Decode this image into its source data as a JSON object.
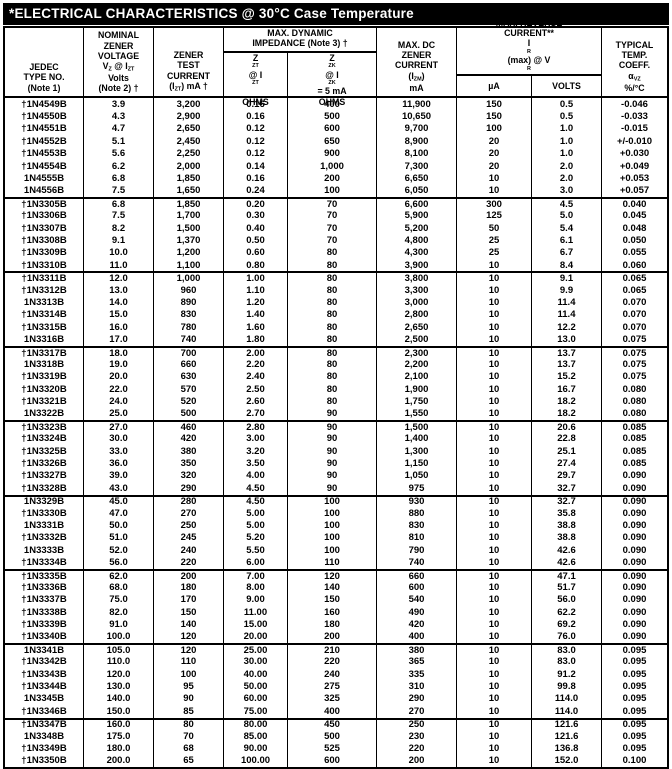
{
  "title": "*ELECTRICAL CHARACTERISTICS @ 30°C Case Temperature",
  "colors": {
    "title_bg": "#000000",
    "title_fg": "#ffffff",
    "table_border": "#000000",
    "text": "#000000",
    "background": "#ffffff"
  },
  "header": {
    "jedec": [
      "JEDEC",
      "TYPE NO.",
      "(Note 1)"
    ],
    "voltage": [
      "NOMINAL",
      "ZENER",
      "VOLTAGE",
      "V~Z~ @ I~ZT~",
      "Volts",
      "(Note 2) †"
    ],
    "test_current": [
      "ZENER",
      "TEST",
      "CURRENT",
      "(I~ZT~) mA †"
    ],
    "impedance_group": [
      "MAX. DYNAMIC",
      "IMPEDANCE (Note 3) †"
    ],
    "zzt_sub": [
      "Z~ZT~ @ I~ZT~",
      "OHMS"
    ],
    "zzk_sub": [
      "Z~ZK~ @ I~ZK~ = 5 mA",
      "OHMS"
    ],
    "izm": [
      "MAX. DC",
      "ZENER",
      "CURRENT",
      "(I~ZM~)",
      "mA"
    ],
    "reverse_group": [
      "MAX. REVERSE",
      "CURRENT**",
      "I~R~(max) @ V~R~"
    ],
    "ua_sub": "µA",
    "volts_sub": "VOLTS",
    "temp_coeff": [
      "TYPICAL",
      "TEMP.",
      "COEFF.",
      "α~VZ~",
      "%/°C"
    ]
  },
  "columns": [
    "jedec_type_no",
    "nominal_zener_voltage_volts",
    "zener_test_current_izt_ma",
    "zzt_at_izt_ohms",
    "zzk_at_izk_5ma_ohms",
    "max_dc_zener_current_izm_ma",
    "max_reverse_current_ua",
    "vr_volts",
    "typical_temp_coeff_pct_per_degc"
  ],
  "groups": [
    {
      "rows": [
        [
          "†1N4549B",
          "3.9",
          "3,200",
          "0.16",
          "400",
          "11,900",
          "150",
          "0.5",
          "-0.046"
        ],
        [
          "†1N4550B",
          "4.3",
          "2,900",
          "0.16",
          "500",
          "10,650",
          "150",
          "0.5",
          "-0.033"
        ],
        [
          "†1N4551B",
          "4.7",
          "2,650",
          "0.12",
          "600",
          "9,700",
          "100",
          "1.0",
          "-0.015"
        ],
        [
          "†1N4552B",
          "5.1",
          "2,450",
          "0.12",
          "650",
          "8,900",
          "20",
          "1.0",
          "+/-0.010"
        ],
        [
          "†1N4553B",
          "5.6",
          "2,250",
          "0.12",
          "900",
          "8,100",
          "20",
          "1.0",
          "+0.030"
        ],
        [
          "†1N4554B",
          "6.2",
          "2,000",
          "0.14",
          "1,000",
          "7,300",
          "20",
          "2.0",
          "+0.049"
        ],
        [
          "1N4555B",
          "6.8",
          "1,850",
          "0.16",
          "200",
          "6,650",
          "10",
          "2.0",
          "+0.053"
        ],
        [
          "1N4556B",
          "7.5",
          "1,650",
          "0.24",
          "100",
          "6,050",
          "10",
          "3.0",
          "+0.057"
        ]
      ]
    },
    {
      "rows": [
        [
          "†1N3305B",
          "6.8",
          "1,850",
          "0.20",
          "70",
          "6,600",
          "300",
          "4.5",
          "0.040"
        ],
        [
          "†1N3306B",
          "7.5",
          "1,700",
          "0.30",
          "70",
          "5,900",
          "125",
          "5.0",
          "0.045"
        ],
        [
          "†1N3307B",
          "8.2",
          "1,500",
          "0.40",
          "70",
          "5,200",
          "50",
          "5.4",
          "0.048"
        ],
        [
          "†1N3308B",
          "9.1",
          "1,370",
          "0.50",
          "70",
          "4,800",
          "25",
          "6.1",
          "0.050"
        ],
        [
          "†1N3309B",
          "10.0",
          "1,200",
          "0.60",
          "80",
          "4,300",
          "25",
          "6.7",
          "0.055"
        ],
        [
          "†1N3310B",
          "11.0",
          "1,100",
          "0.80",
          "80",
          "3,900",
          "10",
          "8.4",
          "0.060"
        ]
      ]
    },
    {
      "rows": [
        [
          "†1N3311B",
          "12.0",
          "1,000",
          "1.00",
          "80",
          "3,800",
          "10",
          "9.1",
          "0.065"
        ],
        [
          "†1N3312B",
          "13.0",
          "960",
          "1.10",
          "80",
          "3,300",
          "10",
          "9.9",
          "0.065"
        ],
        [
          "1N3313B",
          "14.0",
          "890",
          "1.20",
          "80",
          "3,000",
          "10",
          "11.4",
          "0.070"
        ],
        [
          "†1N3314B",
          "15.0",
          "830",
          "1.40",
          "80",
          "2,800",
          "10",
          "11.4",
          "0.070"
        ],
        [
          "†1N3315B",
          "16.0",
          "780",
          "1.60",
          "80",
          "2,650",
          "10",
          "12.2",
          "0.070"
        ],
        [
          "1N3316B",
          "17.0",
          "740",
          "1.80",
          "80",
          "2,500",
          "10",
          "13.0",
          "0.075"
        ]
      ]
    },
    {
      "rows": [
        [
          "†1N3317B",
          "18.0",
          "700",
          "2.00",
          "80",
          "2,300",
          "10",
          "13.7",
          "0.075"
        ],
        [
          "1N3318B",
          "19.0",
          "660",
          "2.20",
          "80",
          "2,200",
          "10",
          "13.7",
          "0.075"
        ],
        [
          "†1N3319B",
          "20.0",
          "630",
          "2.40",
          "80",
          "2,100",
          "10",
          "15.2",
          "0.075"
        ],
        [
          "†1N3320B",
          "22.0",
          "570",
          "2.50",
          "80",
          "1,900",
          "10",
          "16.7",
          "0.080"
        ],
        [
          "†1N3321B",
          "24.0",
          "520",
          "2.60",
          "80",
          "1,750",
          "10",
          "18.2",
          "0.080"
        ],
        [
          "1N3322B",
          "25.0",
          "500",
          "2.70",
          "90",
          "1,550",
          "10",
          "18.2",
          "0.080"
        ]
      ]
    },
    {
      "rows": [
        [
          "†1N3323B",
          "27.0",
          "460",
          "2.80",
          "90",
          "1,500",
          "10",
          "20.6",
          "0.085"
        ],
        [
          "†1N3324B",
          "30.0",
          "420",
          "3.00",
          "90",
          "1,400",
          "10",
          "22.8",
          "0.085"
        ],
        [
          "†1N3325B",
          "33.0",
          "380",
          "3.20",
          "90",
          "1,300",
          "10",
          "25.1",
          "0.085"
        ],
        [
          "†1N3326B",
          "36.0",
          "350",
          "3.50",
          "90",
          "1,150",
          "10",
          "27.4",
          "0.085"
        ],
        [
          "†1N3327B",
          "39.0",
          "320",
          "4.00",
          "90",
          "1,050",
          "10",
          "29.7",
          "0.090"
        ],
        [
          "†1N3328B",
          "43.0",
          "290",
          "4.50",
          "90",
          "975",
          "10",
          "32.7",
          "0.090"
        ]
      ]
    },
    {
      "rows": [
        [
          "1N3329B",
          "45.0",
          "280",
          "4.50",
          "100",
          "930",
          "10",
          "32.7",
          "0.090"
        ],
        [
          "†1N3330B",
          "47.0",
          "270",
          "5.00",
          "100",
          "880",
          "10",
          "35.8",
          "0.090"
        ],
        [
          "1N3331B",
          "50.0",
          "250",
          "5.00",
          "100",
          "830",
          "10",
          "38.8",
          "0.090"
        ],
        [
          "†1N3332B",
          "51.0",
          "245",
          "5.20",
          "100",
          "810",
          "10",
          "38.8",
          "0.090"
        ],
        [
          "1N3333B",
          "52.0",
          "240",
          "5.50",
          "100",
          "790",
          "10",
          "42.6",
          "0.090"
        ],
        [
          "†1N3334B",
          "56.0",
          "220",
          "6.00",
          "110",
          "740",
          "10",
          "42.6",
          "0.090"
        ]
      ]
    },
    {
      "rows": [
        [
          "†1N3335B",
          "62.0",
          "200",
          "7.00",
          "120",
          "660",
          "10",
          "47.1",
          "0.090"
        ],
        [
          "†1N3336B",
          "68.0",
          "180",
          "8.00",
          "140",
          "600",
          "10",
          "51.7",
          "0.090"
        ],
        [
          "†1N3337B",
          "75.0",
          "170",
          "9.00",
          "150",
          "540",
          "10",
          "56.0",
          "0.090"
        ],
        [
          "†1N3338B",
          "82.0",
          "150",
          "11.00",
          "160",
          "490",
          "10",
          "62.2",
          "0.090"
        ],
        [
          "†1N3339B",
          "91.0",
          "140",
          "15.00",
          "180",
          "420",
          "10",
          "69.2",
          "0.090"
        ],
        [
          "†1N3340B",
          "100.0",
          "120",
          "20.00",
          "200",
          "400",
          "10",
          "76.0",
          "0.090"
        ]
      ]
    },
    {
      "rows": [
        [
          "1N3341B",
          "105.0",
          "120",
          "25.00",
          "210",
          "380",
          "10",
          "83.0",
          "0.095"
        ],
        [
          "†1N3342B",
          "110.0",
          "110",
          "30.00",
          "220",
          "365",
          "10",
          "83.0",
          "0.095"
        ],
        [
          "†1N3343B",
          "120.0",
          "100",
          "40.00",
          "240",
          "335",
          "10",
          "91.2",
          "0.095"
        ],
        [
          "†1N3344B",
          "130.0",
          "95",
          "50.00",
          "275",
          "310",
          "10",
          "99.8",
          "0.095"
        ],
        [
          "1N3345B",
          "140.0",
          "90",
          "60.00",
          "325",
          "290",
          "10",
          "114.0",
          "0.095"
        ],
        [
          "†1N3346B",
          "150.0",
          "85",
          "75.00",
          "400",
          "270",
          "10",
          "114.0",
          "0.095"
        ]
      ]
    },
    {
      "rows": [
        [
          "†1N3347B",
          "160.0",
          "80",
          "80.00",
          "450",
          "250",
          "10",
          "121.6",
          "0.095"
        ],
        [
          "1N3348B",
          "175.0",
          "70",
          "85.00",
          "500",
          "230",
          "10",
          "121.6",
          "0.095"
        ],
        [
          "†1N3349B",
          "180.0",
          "68",
          "90.00",
          "525",
          "220",
          "10",
          "136.8",
          "0.095"
        ],
        [
          "†1N3350B",
          "200.0",
          "65",
          "100.00",
          "600",
          "200",
          "10",
          "152.0",
          "0.100"
        ]
      ]
    }
  ]
}
